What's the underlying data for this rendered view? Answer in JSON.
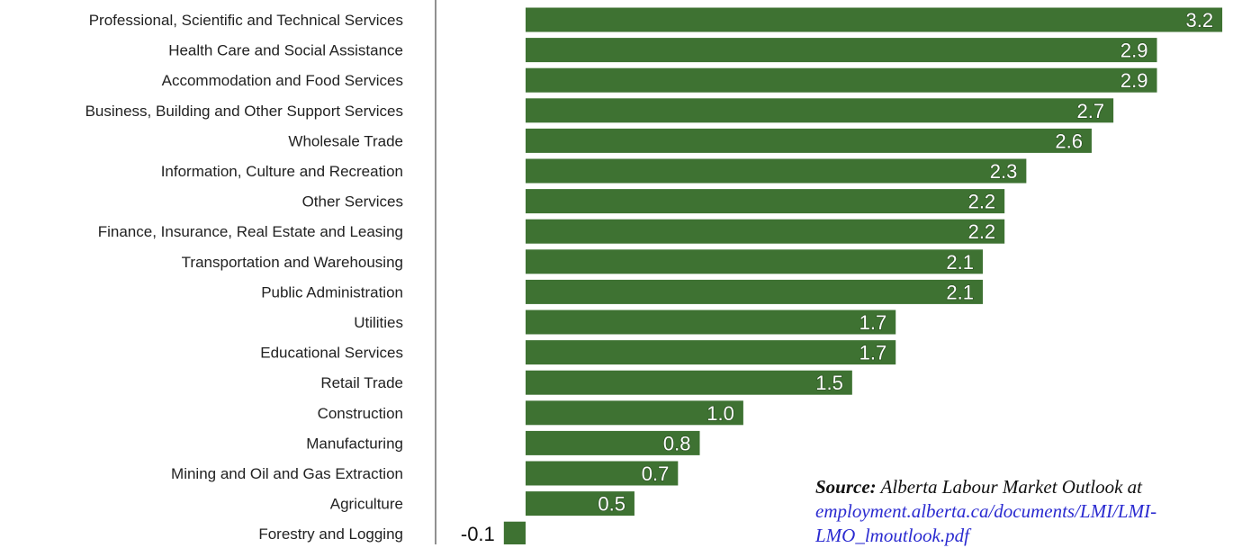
{
  "chart_data": {
    "type": "bar",
    "orientation": "horizontal",
    "title": "",
    "xlabel": "",
    "ylabel": "",
    "categories": [
      "Professional, Scientific and Technical Services",
      "Health Care and Social Assistance",
      "Accommodation and Food Services",
      "Business, Building and Other Support Services",
      "Wholesale Trade ",
      "Information, Culture and Recreation",
      "Other Services",
      "Finance, Insurance, Real Estate and Leasing",
      "Transportation and Warehousing",
      "Public Administration",
      "Utilities",
      "Educational Services",
      "Retail Trade",
      "Construction",
      "Manufacturing",
      "Mining and Oil and Gas Extraction",
      "Agriculture",
      "Forestry and Logging"
    ],
    "values": [
      3.2,
      2.9,
      2.9,
      2.7,
      2.6,
      2.3,
      2.2,
      2.2,
      2.1,
      2.1,
      1.7,
      1.7,
      1.5,
      1.0,
      0.8,
      0.7,
      0.5,
      -0.1
    ],
    "data_labels": [
      "3.2",
      "2.9",
      "2.9",
      "2.7",
      "2.6",
      "2.3",
      "2.2",
      "2.2",
      "2.1",
      "2.1",
      "1.7",
      "1.7",
      "1.5",
      "1.0",
      "0.8",
      "0.7",
      "0.5",
      "-0.1"
    ],
    "bar_color": "#3e7232",
    "label_color": "#ffffff",
    "grid": false,
    "legend": "none"
  },
  "source": {
    "label": "Source:",
    "text": " Alberta Labour Market Outlook at",
    "link_line1": "employment.alberta.ca/documents/LMI/LMI-",
    "link_line2": "LMO_lmoutlook.pdf"
  }
}
